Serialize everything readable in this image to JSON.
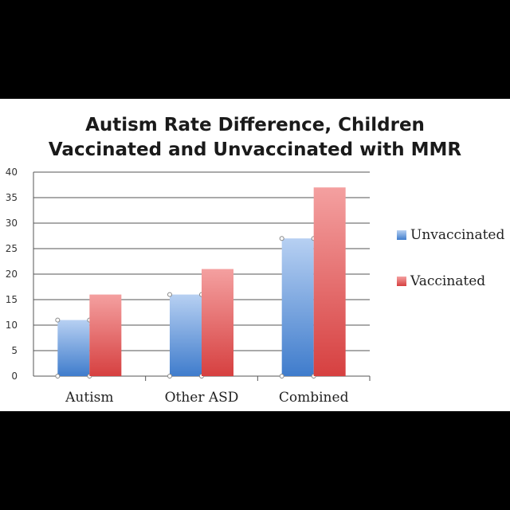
{
  "chart_data": {
    "type": "bar",
    "title_lines": [
      "Autism Rate Difference, Children",
      "Vaccinated and Unvaccinated with MMR"
    ],
    "categories": [
      "Autism",
      "Other ASD",
      "Combined"
    ],
    "series": [
      {
        "name": "Unvaccinated",
        "values": [
          11,
          16,
          27
        ],
        "color": "#4a86d4"
      },
      {
        "name": "Vaccinated",
        "values": [
          16,
          21,
          37
        ],
        "color": "#e05a5a"
      }
    ],
    "xlabel": "",
    "ylabel": "",
    "ylim": [
      0,
      40
    ],
    "yticks": [
      0,
      5,
      10,
      15,
      20,
      25,
      30,
      35,
      40
    ],
    "grid": true,
    "legend_position": "right"
  }
}
